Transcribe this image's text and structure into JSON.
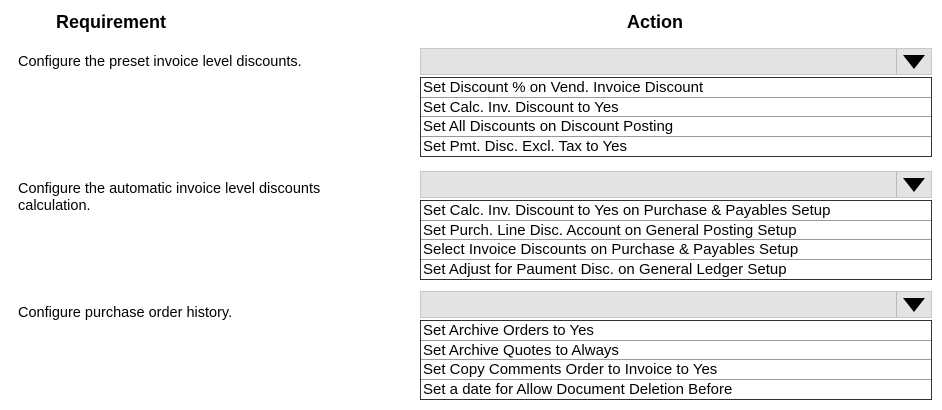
{
  "headers": {
    "requirement": "Requirement",
    "action": "Action"
  },
  "rows": [
    {
      "requirement": "Configure the preset invoice level discounts.",
      "options": [
        "Set Discount % on Vend. Invoice Discount",
        "Set Calc. Inv. Discount to Yes",
        "Set All Discounts on Discount Posting",
        "Set Pmt. Disc. Excl. Tax to Yes"
      ]
    },
    {
      "requirement": "Configure the automatic invoice level discounts calculation.",
      "options": [
        "Set Calc. Inv. Discount to Yes on Purchase & Payables Setup",
        "Set Purch. Line Disc. Account on General Posting Setup",
        "Select Invoice Discounts on Purchase & Payables Setup",
        "Set Adjust for Paument Disc. on General Ledger Setup"
      ]
    },
    {
      "requirement": "Configure purchase order history.",
      "options": [
        "Set Archive Orders to Yes",
        "Set Archive Quotes to Always",
        "Set Copy Comments Order to Invoice to Yes",
        "Set a date for Allow Document Deletion Before"
      ]
    }
  ],
  "icons": {
    "dropdown": "triangle-down-icon"
  }
}
